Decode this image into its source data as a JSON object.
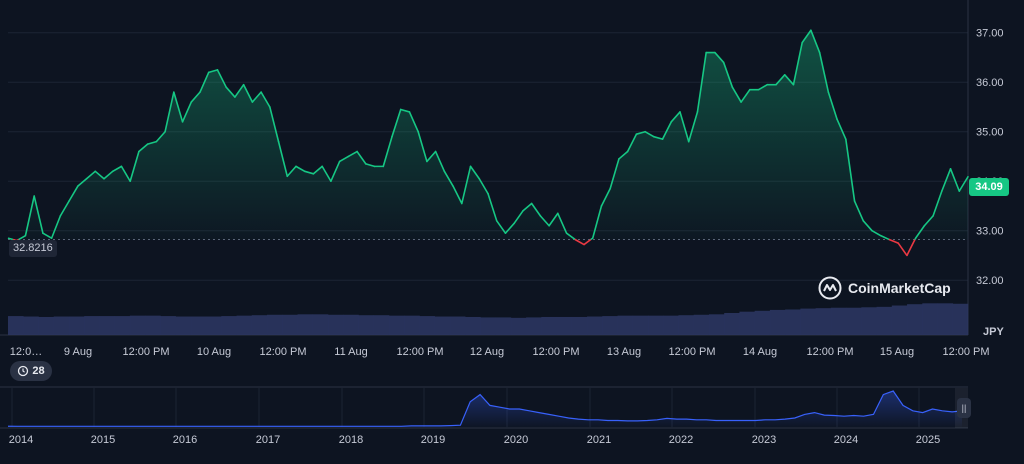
{
  "chart_data": {
    "type": "line",
    "currency": "JPY",
    "current_price": "34.09",
    "open_price": "32.8216",
    "ylim": [
      31.6,
      37.5
    ],
    "yticks": [
      "32.00",
      "33.00",
      "34.00",
      "35.00",
      "36.00",
      "37.00"
    ],
    "xticks": [
      "12:0…",
      "9 Aug",
      "12:00 PM",
      "10 Aug",
      "12:00 PM",
      "11 Aug",
      "12:00 PM",
      "12 Aug",
      "12:00 PM",
      "13 Aug",
      "12:00 PM",
      "14 Aug",
      "12:00 PM",
      "15 Aug",
      "12:00 PM"
    ],
    "grid": true,
    "colors": {
      "up": "#16c784",
      "down": "#ea3943",
      "volume": "#2b3560",
      "navigator": "#3861fb"
    },
    "series": [
      {
        "values": [
          32.85,
          32.8,
          32.9,
          33.7,
          32.95,
          32.85,
          33.3,
          33.6,
          33.9,
          34.05,
          34.2,
          34.05,
          34.2,
          34.3,
          34.0,
          34.6,
          34.75,
          34.8,
          35.0,
          35.8,
          35.2,
          35.6,
          35.8,
          36.2,
          36.25,
          35.9,
          35.7,
          35.95,
          35.6,
          35.8,
          35.5,
          34.8,
          34.1,
          34.3,
          34.2,
          34.15,
          34.3,
          34.0,
          34.4,
          34.5,
          34.6,
          34.35,
          34.3,
          34.3,
          34.9,
          35.45,
          35.4,
          35.0,
          34.4,
          34.6,
          34.2,
          33.9,
          33.55,
          34.3,
          34.05,
          33.75,
          33.2,
          32.95,
          33.15,
          33.4,
          33.55,
          33.3,
          33.1,
          33.35,
          32.95,
          32.82,
          32.72,
          32.85,
          33.5,
          33.85,
          34.45,
          34.6,
          34.95,
          35.0,
          34.9,
          34.85,
          35.2,
          35.4,
          34.8,
          35.4,
          36.6,
          36.6,
          36.4,
          35.9,
          35.6,
          35.85,
          35.85,
          35.95,
          35.95,
          36.15,
          35.95,
          36.8,
          37.05,
          36.6,
          35.8,
          35.25,
          34.85,
          33.6,
          33.2,
          33.0,
          32.9,
          32.82,
          32.75,
          32.5,
          32.85,
          33.1,
          33.3,
          33.8,
          34.25,
          33.8,
          34.09
        ]
      }
    ],
    "volume": {
      "values": [
        0.43,
        0.42,
        0.41,
        0.42,
        0.42,
        0.43,
        0.43,
        0.43,
        0.44,
        0.44,
        0.43,
        0.42,
        0.42,
        0.42,
        0.43,
        0.44,
        0.45,
        0.46,
        0.46,
        0.47,
        0.47,
        0.46,
        0.46,
        0.45,
        0.45,
        0.44,
        0.44,
        0.43,
        0.42,
        0.42,
        0.41,
        0.4,
        0.4,
        0.39,
        0.4,
        0.41,
        0.41,
        0.41,
        0.42,
        0.43,
        0.44,
        0.44,
        0.44,
        0.44,
        0.45,
        0.46,
        0.47,
        0.5,
        0.53,
        0.55,
        0.57,
        0.58,
        0.6,
        0.61,
        0.62,
        0.62,
        0.63,
        0.64,
        0.67,
        0.7,
        0.72,
        0.72,
        0.71
      ]
    },
    "navigator": {
      "xticks": [
        "2014",
        "2015",
        "2016",
        "2017",
        "2018",
        "2019",
        "2020",
        "2021",
        "2022",
        "2023",
        "2024",
        "2025"
      ],
      "values": [
        0.02,
        0.02,
        0.02,
        0.02,
        0.02,
        0.02,
        0.02,
        0.02,
        0.02,
        0.02,
        0.02,
        0.02,
        0.02,
        0.02,
        0.02,
        0.02,
        0.02,
        0.02,
        0.02,
        0.02,
        0.02,
        0.02,
        0.02,
        0.02,
        0.02,
        0.02,
        0.02,
        0.02,
        0.02,
        0.02,
        0.02,
        0.02,
        0.02,
        0.02,
        0.02,
        0.02,
        0.02,
        0.02,
        0.02,
        0.02,
        0.02,
        0.03,
        0.03,
        0.03,
        0.03,
        0.04,
        0.05,
        0.7,
        0.9,
        0.6,
        0.55,
        0.5,
        0.5,
        0.45,
        0.4,
        0.35,
        0.3,
        0.25,
        0.22,
        0.2,
        0.2,
        0.18,
        0.18,
        0.17,
        0.17,
        0.18,
        0.2,
        0.24,
        0.22,
        0.22,
        0.2,
        0.2,
        0.18,
        0.18,
        0.18,
        0.18,
        0.18,
        0.2,
        0.2,
        0.22,
        0.25,
        0.35,
        0.4,
        0.33,
        0.32,
        0.3,
        0.32,
        0.3,
        0.35,
        0.9,
        1.0,
        0.6,
        0.45,
        0.4,
        0.5,
        0.45,
        0.42,
        0.45
      ]
    }
  },
  "watermark": {
    "brand": "CoinMarketCap"
  },
  "controls": {
    "history_count": "28",
    "handle_glyph": "||"
  }
}
